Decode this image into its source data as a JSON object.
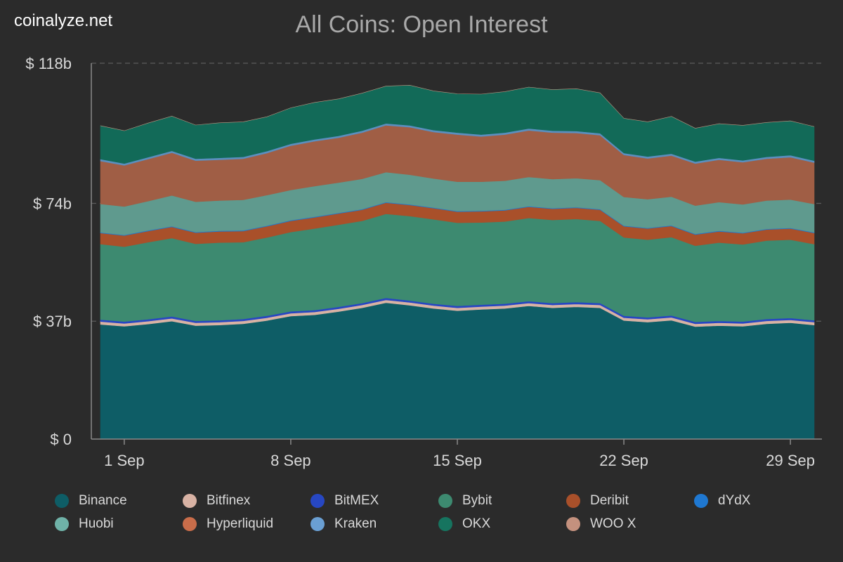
{
  "brand": "coinalyze.net",
  "chart_data": {
    "type": "area",
    "stacked": true,
    "title": "All Coins: Open Interest",
    "xlabel": "",
    "ylabel": "",
    "ylim": [
      0,
      118
    ],
    "y_ticks": [
      {
        "value": 0,
        "label": "$ 0"
      },
      {
        "value": 37,
        "label": "$ 37b"
      },
      {
        "value": 74,
        "label": "$ 74b"
      },
      {
        "value": 118,
        "label": "$ 118b"
      }
    ],
    "x_range": [
      0,
      30
    ],
    "x_ticks": [
      {
        "day": 1,
        "label": "1 Sep"
      },
      {
        "day": 8,
        "label": "8 Sep"
      },
      {
        "day": 15,
        "label": "15 Sep"
      },
      {
        "day": 22,
        "label": "22 Sep"
      },
      {
        "day": 29,
        "label": "29 Sep"
      }
    ],
    "x": [
      0,
      1,
      2,
      3,
      4,
      5,
      6,
      7,
      8,
      9,
      10,
      11,
      12,
      13,
      14,
      15,
      16,
      17,
      18,
      19,
      20,
      21,
      22,
      23,
      24,
      25,
      26,
      27,
      28,
      29,
      30
    ],
    "series": [
      {
        "name": "Binance",
        "color": "#0e5d66",
        "values": [
          36.0,
          35.4,
          36.1,
          37.0,
          35.6,
          35.8,
          36.2,
          37.2,
          38.6,
          39.0,
          40.0,
          41.2,
          42.8,
          42.0,
          41.0,
          40.3,
          40.7,
          41.0,
          41.8,
          41.2,
          41.5,
          41.2,
          37.2,
          36.7,
          37.3,
          35.3,
          35.6,
          35.4,
          36.2,
          36.5,
          35.8
        ]
      },
      {
        "name": "Bitfinex",
        "color": "#d8b2a4",
        "values": [
          0.9,
          0.9,
          0.9,
          0.9,
          0.9,
          0.9,
          0.9,
          0.9,
          0.9,
          0.9,
          0.9,
          0.9,
          0.9,
          0.9,
          0.9,
          0.9,
          0.9,
          0.9,
          0.9,
          0.9,
          0.9,
          0.9,
          0.9,
          0.9,
          0.9,
          0.9,
          0.9,
          0.9,
          0.9,
          0.9,
          0.9
        ]
      },
      {
        "name": "BitMEX",
        "color": "#2747c2",
        "values": [
          0.6,
          0.6,
          0.6,
          0.6,
          0.6,
          0.6,
          0.6,
          0.6,
          0.6,
          0.6,
          0.6,
          0.6,
          0.6,
          0.6,
          0.6,
          0.6,
          0.6,
          0.6,
          0.6,
          0.6,
          0.6,
          0.6,
          0.6,
          0.6,
          0.6,
          0.6,
          0.6,
          0.6,
          0.6,
          0.6,
          0.6
        ]
      },
      {
        "name": "Bybit",
        "color": "#3d8a70",
        "values": [
          23.7,
          23.5,
          24.2,
          24.6,
          24.2,
          24.4,
          24.1,
          24.6,
          24.9,
          25.6,
          25.8,
          25.8,
          26.4,
          26.5,
          26.5,
          26.1,
          25.8,
          25.8,
          26.1,
          26.1,
          26.1,
          25.8,
          24.6,
          24.4,
          24.6,
          23.9,
          24.6,
          24.2,
          24.6,
          24.6,
          23.9
        ]
      },
      {
        "name": "Deribit",
        "color": "#a9502a",
        "values": [
          3.5,
          3.5,
          3.5,
          3.5,
          3.5,
          3.5,
          3.5,
          3.5,
          3.5,
          3.5,
          3.5,
          3.5,
          3.5,
          3.5,
          3.5,
          3.5,
          3.5,
          3.5,
          3.5,
          3.5,
          3.5,
          3.5,
          3.5,
          3.5,
          3.5,
          3.5,
          3.5,
          3.5,
          3.5,
          3.5,
          3.5
        ]
      },
      {
        "name": "dYdX",
        "color": "#1f78d1",
        "values": [
          0.2,
          0.2,
          0.2,
          0.2,
          0.2,
          0.2,
          0.2,
          0.2,
          0.2,
          0.2,
          0.2,
          0.2,
          0.2,
          0.2,
          0.2,
          0.2,
          0.2,
          0.2,
          0.2,
          0.2,
          0.2,
          0.2,
          0.2,
          0.2,
          0.2,
          0.2,
          0.2,
          0.2,
          0.2,
          0.2,
          0.2
        ]
      },
      {
        "name": "Huobi",
        "color": "#5f9a8e",
        "values": [
          8.9,
          8.9,
          9.2,
          9.7,
          9.5,
          9.5,
          9.6,
          9.6,
          9.5,
          9.6,
          9.5,
          9.5,
          9.4,
          9.3,
          9.1,
          9.2,
          9.1,
          9.1,
          9.2,
          9.1,
          9.1,
          9.1,
          9.0,
          9.0,
          9.0,
          8.9,
          9.0,
          8.9,
          8.9,
          8.9,
          8.9
        ]
      },
      {
        "name": "Hyperliquid",
        "color": "#a05e45",
        "values": [
          13.5,
          12.9,
          13.2,
          13.4,
          12.9,
          12.8,
          12.9,
          13.2,
          13.9,
          14.1,
          14.1,
          14.5,
          14.7,
          14.9,
          14.6,
          14.8,
          14.2,
          14.5,
          14.6,
          14.6,
          14.2,
          14.1,
          13.2,
          12.8,
          12.9,
          13.2,
          13.3,
          13.2,
          13.1,
          13.3,
          13.0
        ]
      },
      {
        "name": "Kraken",
        "color": "#5b8fbf",
        "values": [
          0.6,
          0.6,
          0.6,
          0.6,
          0.6,
          0.6,
          0.6,
          0.6,
          0.6,
          0.6,
          0.6,
          0.6,
          0.6,
          0.6,
          0.6,
          0.6,
          0.6,
          0.6,
          0.6,
          0.6,
          0.6,
          0.6,
          0.6,
          0.6,
          0.6,
          0.6,
          0.6,
          0.6,
          0.6,
          0.6,
          0.6
        ]
      },
      {
        "name": "OKX",
        "color": "#126a58",
        "values": [
          10.5,
          10.3,
          10.7,
          10.9,
          10.6,
          11.0,
          11.0,
          10.8,
          11.3,
          11.6,
          11.6,
          11.8,
          11.7,
          12.6,
          12.3,
          12.2,
          12.7,
          12.9,
          13.0,
          12.9,
          13.3,
          12.7,
          10.9,
          10.9,
          11.7,
          10.5,
          10.7,
          11.0,
          10.8,
          10.8,
          10.7
        ]
      },
      {
        "name": "WOO X",
        "color": "#c4917e",
        "values": [
          0,
          0,
          0,
          0,
          0,
          0,
          0,
          0,
          0,
          0,
          0,
          0,
          0,
          0,
          0,
          0,
          0,
          0,
          0,
          0,
          0,
          0,
          0,
          0,
          0,
          0,
          0,
          0,
          0,
          0,
          0
        ]
      }
    ],
    "legend": [
      {
        "label": "Binance",
        "color": "#0e5d66"
      },
      {
        "label": "Bitfinex",
        "color": "#d8b2a4"
      },
      {
        "label": "BitMEX",
        "color": "#2747c2"
      },
      {
        "label": "Bybit",
        "color": "#3d8a70"
      },
      {
        "label": "Deribit",
        "color": "#a9502a"
      },
      {
        "label": "dYdX",
        "color": "#1f78d1"
      },
      {
        "label": "Huobi",
        "color": "#6fb2a8"
      },
      {
        "label": "Hyperliquid",
        "color": "#c96d4a"
      },
      {
        "label": "Kraken",
        "color": "#6a9fd3"
      },
      {
        "label": "OKX",
        "color": "#16745f"
      },
      {
        "label": "WOO X",
        "color": "#c4917e"
      }
    ],
    "legend_position": "bottom"
  }
}
